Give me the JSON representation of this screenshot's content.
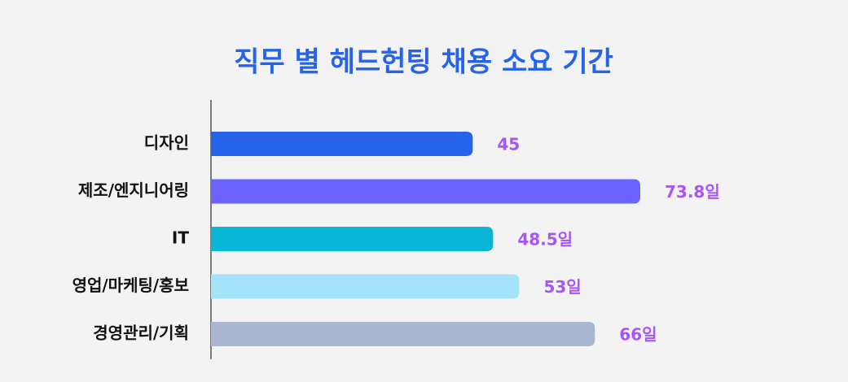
{
  "chart_data": {
    "type": "bar",
    "orientation": "horizontal",
    "title": "직무 별 헤드헌팅 채용 소요 기간",
    "categories": [
      "디자인",
      "제조/엔지니어링",
      "IT",
      "영업/마케팅/홍보",
      "경영관리/기획"
    ],
    "values": [
      45,
      73.8,
      48.5,
      53,
      66
    ],
    "value_labels": [
      "45",
      "73.8일",
      "48.5일",
      "53일",
      "66일"
    ],
    "colors": [
      "#2563eb",
      "#6c63ff",
      "#06b6d4",
      "#a5e3fb",
      "#a9b6d1"
    ]
  }
}
